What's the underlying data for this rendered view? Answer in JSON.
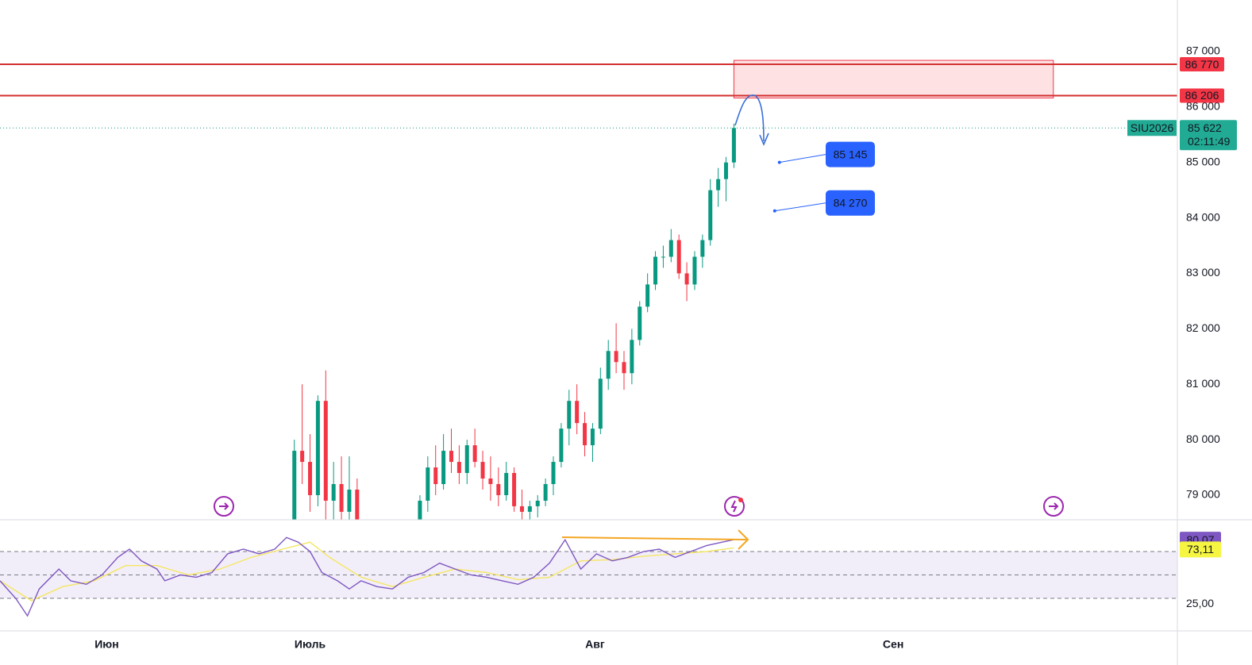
{
  "chart_data": {
    "type": "candlestick",
    "symbol": "SIU2026",
    "xlim": [
      0,
      150
    ],
    "xticks": [
      {
        "value": 13.6,
        "label": "Июн"
      },
      {
        "value": 39.5,
        "label": "Июль"
      },
      {
        "value": 75.8,
        "label": "Авг"
      },
      {
        "value": 113.8,
        "label": "Сен"
      }
    ],
    "ylim": [
      78556,
      87930
    ],
    "yticks": [
      {
        "value": 79000,
        "label": "79 000"
      },
      {
        "value": 80000,
        "label": "80 000"
      },
      {
        "value": 81000,
        "label": "81 000"
      },
      {
        "value": 82000,
        "label": "82 000"
      },
      {
        "value": 83000,
        "label": "83 000"
      },
      {
        "value": 84000,
        "label": "84 000"
      },
      {
        "value": 85000,
        "label": "85 000"
      },
      {
        "value": 86000,
        "label": "86 000"
      },
      {
        "value": 87000,
        "label": "87 000"
      }
    ],
    "grid": true,
    "up_color": "#089981",
    "down_color": "#f23645",
    "candles": {
      "x": [
        37.5,
        38.5,
        39.5,
        40.5,
        41.5,
        42.5,
        43.5,
        44.5,
        45.5,
        53.5,
        54.5,
        55.5,
        56.5,
        57.5,
        58.5,
        59.5,
        60.5,
        61.5,
        62.5,
        63.5,
        64.5,
        65.5,
        66.5,
        67.5,
        68.5,
        69.5,
        70.5,
        71.5,
        72.5,
        73.5,
        74.5,
        75.5,
        76.5,
        77.5,
        78.5,
        79.5,
        80.5,
        81.5,
        82.5,
        83.5,
        84.5,
        85.5,
        86.5,
        87.5,
        88.5,
        89.5,
        90.5,
        91.5,
        92.5,
        93.5
      ],
      "open": [
        78500,
        79800,
        79600,
        79000,
        80700,
        78900,
        79200,
        78700,
        79100,
        78300,
        78900,
        79500,
        79200,
        79800,
        79600,
        79400,
        79900,
        79600,
        79300,
        79200,
        79000,
        79400,
        78800,
        78700,
        78800,
        78900,
        79200,
        79600,
        80200,
        80700,
        80300,
        79900,
        80200,
        81100,
        81600,
        81400,
        81200,
        81800,
        82400,
        82800,
        83300,
        83300,
        83600,
        83000,
        82800,
        83300,
        83600,
        84500,
        84700,
        85000
      ],
      "high": [
        80000,
        81000,
        80100,
        80800,
        81250,
        79600,
        79700,
        79700,
        79300,
        79000,
        79700,
        79900,
        80100,
        80200,
        79900,
        80000,
        80200,
        79800,
        79700,
        79500,
        79600,
        79500,
        79100,
        78900,
        79000,
        79300,
        79700,
        80300,
        80900,
        81000,
        80500,
        80300,
        81300,
        81800,
        82100,
        81600,
        82000,
        82500,
        83000,
        83400,
        83500,
        83800,
        83700,
        83200,
        83400,
        83700,
        84700,
        84900,
        85100,
        85700
      ],
      "low": [
        78000,
        79200,
        78700,
        78800,
        78500,
        78300,
        78500,
        78400,
        78000,
        78100,
        78700,
        79000,
        79100,
        79400,
        79200,
        79200,
        79500,
        79100,
        78900,
        78800,
        78900,
        78700,
        78500,
        78500,
        78600,
        78800,
        79000,
        79500,
        79900,
        80100,
        79700,
        79600,
        80100,
        80900,
        81200,
        80900,
        81000,
        81700,
        82300,
        82700,
        83100,
        83200,
        82900,
        82500,
        82700,
        83100,
        83500,
        84200,
        84300,
        84900
      ],
      "close": [
        79800,
        79600,
        79000,
        80700,
        78900,
        79200,
        78700,
        79100,
        78200,
        78900,
        79500,
        79200,
        79800,
        79600,
        79400,
        79900,
        79600,
        79300,
        79200,
        79000,
        79400,
        78800,
        78700,
        78800,
        78900,
        79200,
        79600,
        80200,
        80700,
        80300,
        79900,
        80200,
        81100,
        81600,
        81400,
        81200,
        81800,
        82400,
        82800,
        83300,
        83300,
        83600,
        83000,
        82800,
        83300,
        83600,
        84500,
        84700,
        85000,
        85622
      ]
    },
    "levels": [
      {
        "value": 86770,
        "label": "86 770"
      },
      {
        "value": 86206,
        "label": "86 206"
      }
    ],
    "zone_x": [
      93.5,
      134.2
    ],
    "last_price": {
      "value": 85622,
      "label": "85 622"
    },
    "countdown": "02:11:49",
    "notes": [
      {
        "x": 99.3,
        "value": 85145,
        "label": "85 145"
      },
      {
        "x": 98.7,
        "value": 84270,
        "label": "84 270"
      }
    ],
    "rsi": {
      "ylim": [
        2.2,
        97.1
      ],
      "yticks": [
        {
          "value": 25,
          "label": "25,00"
        }
      ],
      "bands": [
        30,
        50,
        70
      ],
      "x": [
        0,
        2,
        3.5,
        5,
        7.5,
        9,
        11,
        13,
        15,
        16.5,
        18,
        20,
        21,
        23,
        25,
        27,
        29,
        31,
        33,
        35,
        36.5,
        38,
        39.5,
        41,
        43,
        44.5,
        46,
        48,
        50,
        52,
        54,
        56,
        58,
        60,
        62,
        64,
        66,
        68,
        70,
        72,
        74,
        76,
        78,
        80,
        82,
        84,
        86,
        88,
        90,
        92,
        93.5
      ],
      "values": [
        45,
        30,
        15,
        38,
        55,
        45,
        42,
        50,
        65,
        72,
        62,
        55,
        45,
        50,
        48,
        52,
        68,
        72,
        68,
        72,
        82,
        78,
        70,
        52,
        45,
        38,
        45,
        40,
        38,
        48,
        52,
        60,
        55,
        50,
        48,
        45,
        42,
        48,
        60,
        80,
        55,
        68,
        62,
        65,
        70,
        72,
        65,
        70,
        75,
        78,
        80.07
      ],
      "ma_x": [
        0,
        4,
        8,
        12,
        16,
        20,
        24,
        28,
        32,
        36,
        39.5,
        42,
        46,
        50,
        54,
        58,
        62,
        66,
        70,
        74,
        78,
        82,
        86,
        90,
        93.5
      ],
      "ma_values": [
        45,
        28,
        40,
        45,
        58,
        58,
        50,
        55,
        65,
        72,
        78,
        65,
        48,
        40,
        48,
        55,
        52,
        46,
        48,
        62,
        63,
        66,
        68,
        70,
        73.11
      ],
      "last": {
        "value": 80.07,
        "label": "80,07"
      },
      "ma_last": {
        "value": 73.11,
        "label": "73,11"
      }
    }
  }
}
